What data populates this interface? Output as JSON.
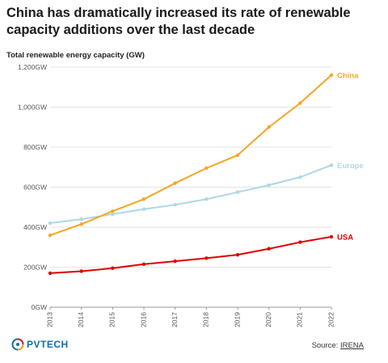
{
  "title": "China has dramatically increased its rate of renewable capacity additions over the last decade",
  "subtitle": "Total renewable energy capacity (GW)",
  "source": {
    "prefix": "Source: ",
    "link_text": "IRENA"
  },
  "logo": {
    "text": "PVTECH",
    "icon": "pv-tech-logo-icon"
  },
  "chart_data": {
    "type": "line",
    "title": "China has dramatically increased its rate of renewable capacity additions over the last decade",
    "ylabel": "Total renewable energy capacity (GW)",
    "xlabel": "",
    "x": [
      "2013",
      "2014",
      "2015",
      "2016",
      "2017",
      "2018",
      "2019",
      "2020",
      "2021",
      "2022"
    ],
    "ylim": [
      0,
      1200
    ],
    "yticks": [
      0,
      200,
      400,
      600,
      800,
      1000,
      1200
    ],
    "ytick_labels": [
      "0GW",
      "200GW",
      "400GW",
      "600GW",
      "800GW",
      "1,000GW",
      "1,200GW"
    ],
    "grid": "horizontal",
    "series": [
      {
        "name": "China",
        "color": "#f5a623",
        "values": [
          360,
          415,
          480,
          540,
          620,
          695,
          760,
          900,
          1020,
          1160
        ]
      },
      {
        "name": "Europe",
        "color": "#add8e6",
        "values": [
          420,
          440,
          465,
          490,
          512,
          540,
          575,
          610,
          650,
          710
        ]
      },
      {
        "name": "USA",
        "color": "#e00000",
        "values": [
          170,
          180,
          195,
          215,
          230,
          245,
          262,
          292,
          325,
          352
        ]
      }
    ]
  }
}
